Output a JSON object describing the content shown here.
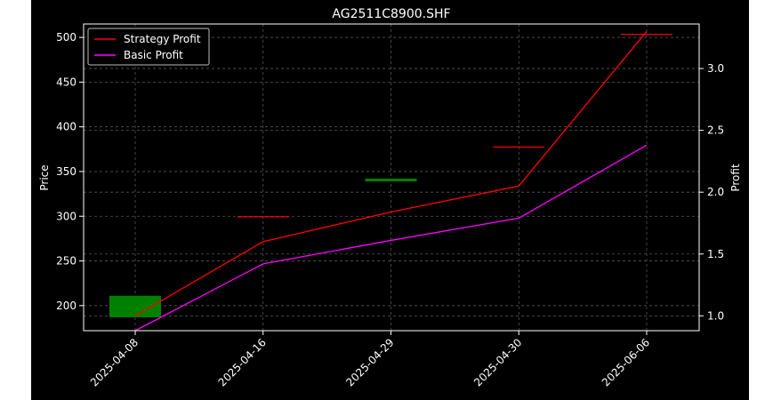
{
  "chart_data": {
    "type": "line",
    "title": "AG2511C8900.SHF",
    "ylabel": "Price",
    "y2label": "Profit",
    "categories": [
      "2025-04-08",
      "2025-04-16",
      "2025-04-29",
      "2025-04-30",
      "2025-06-06"
    ],
    "ylim": [
      172,
      515
    ],
    "y2lim": [
      0.88,
      3.36
    ],
    "yticks": [
      200,
      250,
      300,
      350,
      400,
      450,
      500
    ],
    "y2ticks": [
      1.0,
      1.5,
      2.0,
      2.5,
      3.0
    ],
    "grid": true,
    "legend_position": "top-left",
    "background": "#000000",
    "candles": [
      {
        "x": "2025-04-08",
        "open": 187,
        "close": 211,
        "color": "#008000"
      },
      {
        "x": "2025-04-16",
        "open": 300,
        "close": 300,
        "color": "#ff0000"
      },
      {
        "x": "2025-04-29",
        "open": 339,
        "close": 342,
        "color": "#008000"
      },
      {
        "x": "2025-04-30",
        "open": 378,
        "close": 378,
        "color": "#ff0000"
      },
      {
        "x": "2025-06-06",
        "open": 504,
        "close": 504,
        "color": "#ff0000"
      }
    ],
    "series": [
      {
        "name": "Strategy Profit",
        "axis": "right",
        "color": "#ff0000",
        "values": [
          1.0,
          1.6,
          1.84,
          2.05,
          3.3
        ]
      },
      {
        "name": "Basic Profit",
        "axis": "right",
        "color": "#ff00ff",
        "values": [
          0.88,
          1.42,
          1.61,
          1.79,
          2.38
        ]
      }
    ]
  }
}
